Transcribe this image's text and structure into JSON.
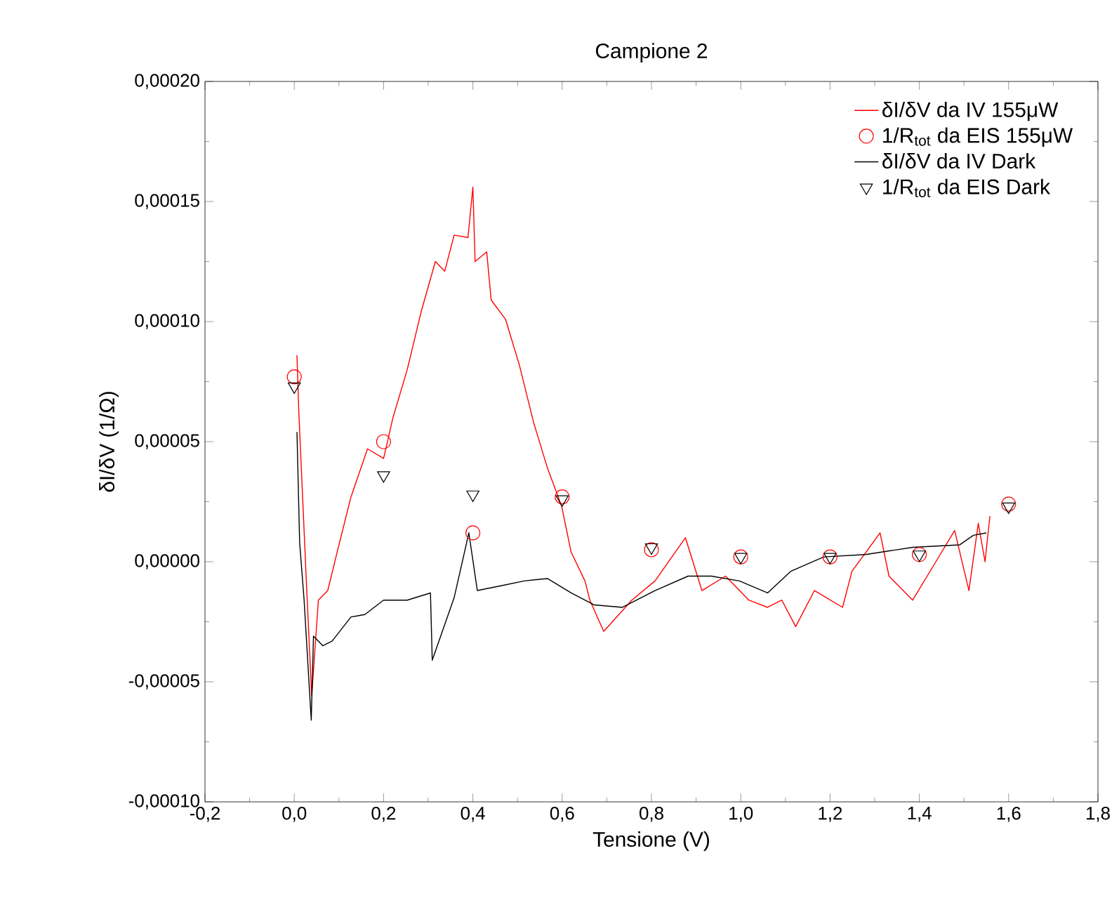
{
  "chart_data": {
    "type": "line",
    "title": "Campione 2",
    "xlabel": "Tensione (V)",
    "ylabel": "δI/δV (1/Ω)",
    "xlim": [
      -0.2,
      1.8
    ],
    "ylim": [
      -0.0001,
      0.0002
    ],
    "xticks": [
      {
        "value": -0.2,
        "label": "-0,2"
      },
      {
        "value": 0,
        "label": "0,0"
      },
      {
        "value": 0.2,
        "label": "0,2"
      },
      {
        "value": 0.4,
        "label": "0,4"
      },
      {
        "value": 0.6,
        "label": "0,6"
      },
      {
        "value": 0.8,
        "label": "0,8"
      },
      {
        "value": 1.0,
        "label": "1,0"
      },
      {
        "value": 1.2,
        "label": "1,2"
      },
      {
        "value": 1.4,
        "label": "1,4"
      },
      {
        "value": 1.6,
        "label": "1,6"
      },
      {
        "value": 1.8,
        "label": "1,8"
      }
    ],
    "yticks": [
      {
        "value": -0.0001,
        "label": "-0,00010"
      },
      {
        "value": -5e-05,
        "label": "-0,00005"
      },
      {
        "value": 0,
        "label": "0,00000"
      },
      {
        "value": 5e-05,
        "label": "0,00005"
      },
      {
        "value": 0.0001,
        "label": "0,00010"
      },
      {
        "value": 0.00015,
        "label": "0,00015"
      },
      {
        "value": 0.0002,
        "label": "0,00020"
      }
    ],
    "legend": "top right",
    "series": [
      {
        "name": "δI/δV da IV 155μW",
        "color": "#ff0000",
        "x": [
          0.006,
          0.01,
          0.027,
          0.039,
          0.054,
          0.075,
          0.096,
          0.127,
          0.164,
          0.2,
          0.221,
          0.253,
          0.284,
          0.316,
          0.337,
          0.358,
          0.389,
          0.4,
          0.405,
          0.431,
          0.441,
          0.473,
          0.504,
          0.536,
          0.567,
          0.599,
          0.62,
          0.651,
          0.662,
          0.693,
          0.756,
          0.808,
          0.876,
          0.913,
          0.966,
          1.018,
          1.06,
          1.092,
          1.123,
          1.165,
          1.228,
          1.249,
          1.312,
          1.332,
          1.385,
          1.437,
          1.479,
          1.511,
          1.532,
          1.547,
          1.558
        ],
        "values": [
          8.6e-05,
          6.3e-05,
          -8e-06,
          -5.6e-05,
          -1.6e-05,
          -1.2e-05,
          4e-06,
          2.7e-05,
          4.7e-05,
          4.3e-05,
          6e-05,
          8e-05,
          0.000104,
          0.000125,
          0.000121,
          0.000136,
          0.000135,
          0.000156,
          0.000125,
          0.000129,
          0.000109,
          0.000101,
          8.2e-05,
          5.8e-05,
          3.9e-05,
          2.3e-05,
          4e-06,
          -8e-06,
          -1.6e-05,
          -2.9e-05,
          -1.6e-05,
          -8e-06,
          1e-05,
          -1.2e-05,
          -6e-06,
          -1.6e-05,
          -1.9e-05,
          -1.6e-05,
          -2.7e-05,
          -1.2e-05,
          -1.9e-05,
          -4e-06,
          1.2e-05,
          -6e-06,
          -1.6e-05,
          0.0,
          1.3e-05,
          -1.2e-05,
          1.6e-05,
          0.0,
          1.9e-05
        ]
      },
      {
        "name": "1/R$_{tot}$ da EIS 155μW",
        "type": "scatter",
        "marker": "circle",
        "color": "#ff0000",
        "x": [
          0,
          0.2,
          0.4,
          0.6,
          0.8,
          1.0,
          1.2,
          1.4,
          1.6
        ],
        "values": [
          7.7e-05,
          5e-05,
          1.2e-05,
          2.7e-05,
          5e-06,
          2e-06,
          2e-06,
          3e-06,
          2.4e-05
        ]
      },
      {
        "name": "δI/δV da IV Dark",
        "color": "#000000",
        "x": [
          0.006,
          0.012,
          0.022,
          0.038,
          0.043,
          0.064,
          0.085,
          0.127,
          0.158,
          0.2,
          0.253,
          0.305,
          0.309,
          0.358,
          0.391,
          0.41,
          0.463,
          0.515,
          0.567,
          0.62,
          0.672,
          0.735,
          0.808,
          0.882,
          0.934,
          0.997,
          1.06,
          1.112,
          1.186,
          1.28,
          1.385,
          1.49,
          1.521,
          1.55
        ],
        "values": [
          5.4e-05,
          8e-06,
          -1.6e-05,
          -6.6e-05,
          -3.1e-05,
          -3.5e-05,
          -3.3e-05,
          -2.3e-05,
          -2.2e-05,
          -1.6e-05,
          -1.6e-05,
          -1.3e-05,
          -4.1e-05,
          -1.5e-05,
          1.2e-05,
          -1.2e-05,
          -1e-05,
          -8e-06,
          -7e-06,
          -1.3e-05,
          -1.8e-05,
          -1.9e-05,
          -1.2e-05,
          -6e-06,
          -6e-06,
          -8e-06,
          -1.3e-05,
          -4e-06,
          2e-06,
          3e-06,
          6e-06,
          7e-06,
          1.1e-05,
          1.2e-05
        ]
      },
      {
        "name": "1/R$_{tot}$ da EIS Dark",
        "type": "scatter",
        "marker": "triangle",
        "color": "#000000",
        "x": [
          0,
          0.2,
          0.4,
          0.6,
          0.8,
          1.0,
          1.2,
          1.4,
          1.6
        ],
        "values": [
          7.3e-05,
          3.6e-05,
          2.8e-05,
          2.6e-05,
          6e-06,
          2e-06,
          2e-06,
          3e-06,
          2.3e-05
        ]
      }
    ]
  }
}
